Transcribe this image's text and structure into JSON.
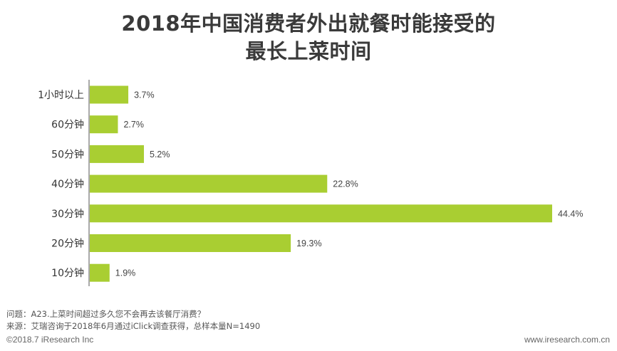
{
  "title": {
    "line1": "2018年中国消费者外出就餐时能接受的",
    "line2": "最长上菜时间"
  },
  "colors": {
    "bar": "#A9CE32",
    "axis": "#555555",
    "title": "#3a3a3a"
  },
  "chart_data": {
    "type": "bar",
    "orientation": "horizontal",
    "title": "2018年中国消费者外出就餐时能接受的最长上菜时间",
    "categories": [
      "1小时以上",
      "60分钟",
      "50分钟",
      "40分钟",
      "30分钟",
      "20分钟",
      "10分钟"
    ],
    "values": [
      3.7,
      2.7,
      5.2,
      22.8,
      44.4,
      19.3,
      1.9
    ],
    "value_labels": [
      "3.7%",
      "2.7%",
      "5.2%",
      "22.8%",
      "44.4%",
      "19.3%",
      "1.9%"
    ],
    "unit": "%",
    "xlim": [
      0,
      44.4
    ],
    "xlabel": "",
    "ylabel": "",
    "grid": false,
    "legend": "none"
  },
  "notes": {
    "question": "问题：A23.上菜时间超过多久您不会再去该餐厅消费？",
    "source": "来源：艾瑞咨询于2018年6月通过iClick调查获得，总样本量N=1490"
  },
  "footer": {
    "copyright": "©2018.7 iResearch  Inc",
    "website": "www.iresearch.com.cn"
  }
}
